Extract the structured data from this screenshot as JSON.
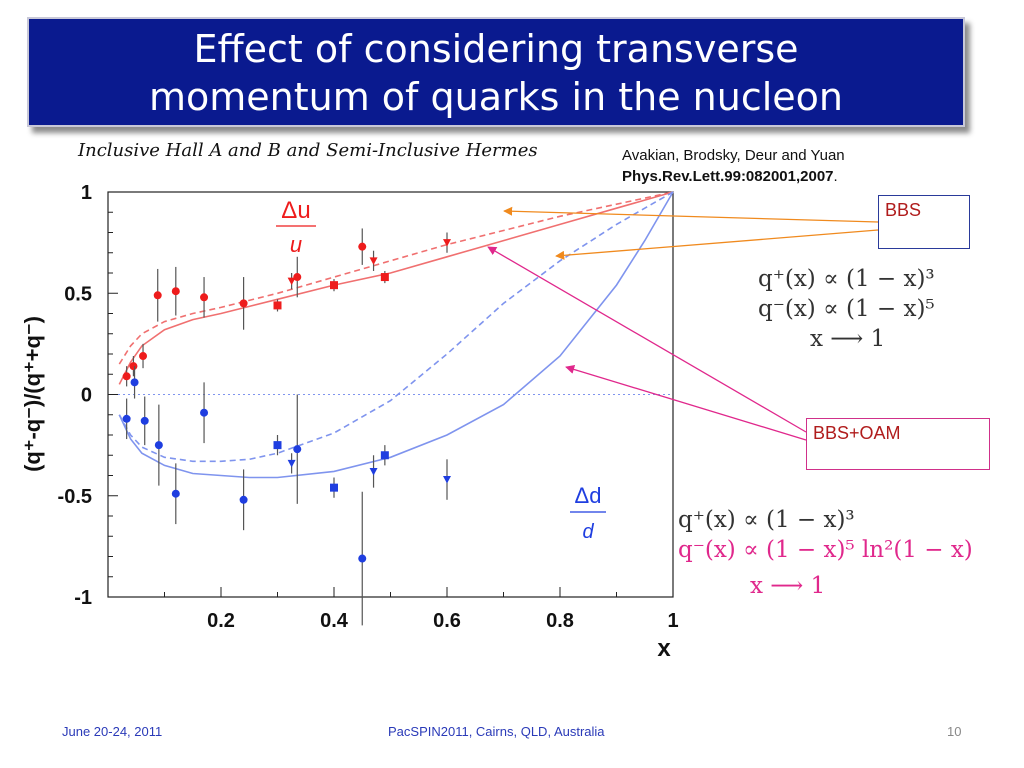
{
  "slide": {
    "title_line1": "Effect of considering transverse",
    "title_line2": "momentum of quarks in the nucleon",
    "subtitle": "Inclusive Hall A and B and Semi-Inclusive Hermes",
    "citation_authors": "Avakian, Brodsky, Deur and Yuan",
    "citation_ref": "Phys.Rev.Lett.99:082001,2007",
    "citation_period": ".",
    "bbs_label": "BBS",
    "bbs_oam_label": "BBS+OAM",
    "formula_bbs_1": "q⁺(x) ∝ (1 − x)³",
    "formula_bbs_2": "q⁻(x) ∝ (1 − x)⁵",
    "formula_bbs_3": "x ⟶ 1",
    "formula_oam_1": "q⁺(x) ∝ (1 − x)³",
    "formula_oam_2": "q⁻(x) ∝ (1 − x)⁵ ln²(1 − x)",
    "formula_oam_3": "x ⟶ 1",
    "footer_date": "June 20-24, 2011",
    "footer_conf": "PacSPIN2011, Cairns, QLD, Australia",
    "footer_page": "10"
  },
  "colors": {
    "title_bg": "#0a1a8f",
    "u_color": "#ee1c1c",
    "d_color": "#1f3ee0",
    "u_curve": "#f07070",
    "d_curve": "#7f94ee",
    "arrow_bbs": "#f08a1e",
    "arrow_oam": "#e0288c"
  },
  "chart_data": {
    "type": "scatter",
    "xlabel": "x",
    "ylabel": "(q⁺-q⁻)/(q⁺+q⁻)",
    "xlim": [
      0.0,
      1.0
    ],
    "ylim": [
      -1.0,
      1.0
    ],
    "x_ticks": [
      0.2,
      0.4,
      0.6,
      0.8,
      1.0
    ],
    "x_tick_labels": [
      "0.2",
      "0.4",
      "0.6",
      "0.8",
      "1"
    ],
    "y_ticks": [
      -1.0,
      -0.5,
      0.0,
      0.5,
      1.0
    ],
    "y_tick_labels": [
      "-1",
      "-0.5",
      "0",
      "0.5",
      "1"
    ],
    "series_labels": {
      "u": "Δu/u",
      "d": "Δd/d"
    },
    "points": [
      {
        "flavor": "u",
        "marker": "circle",
        "x": 0.033,
        "y": 0.09,
        "err": 0.05
      },
      {
        "flavor": "u",
        "marker": "circle",
        "x": 0.045,
        "y": 0.14,
        "err": 0.05
      },
      {
        "flavor": "u",
        "marker": "circle",
        "x": 0.062,
        "y": 0.19,
        "err": 0.06
      },
      {
        "flavor": "u",
        "marker": "circle",
        "x": 0.088,
        "y": 0.49,
        "err": 0.13
      },
      {
        "flavor": "u",
        "marker": "circle",
        "x": 0.12,
        "y": 0.51,
        "err": 0.12
      },
      {
        "flavor": "u",
        "marker": "circle",
        "x": 0.17,
        "y": 0.48,
        "err": 0.1
      },
      {
        "flavor": "u",
        "marker": "circle",
        "x": 0.24,
        "y": 0.45,
        "err": 0.13
      },
      {
        "flavor": "u",
        "marker": "circle",
        "x": 0.335,
        "y": 0.58,
        "err": 0.1
      },
      {
        "flavor": "u",
        "marker": "circle",
        "x": 0.45,
        "y": 0.73,
        "err": 0.09
      },
      {
        "flavor": "u",
        "marker": "square",
        "x": 0.3,
        "y": 0.44,
        "err": 0.03
      },
      {
        "flavor": "u",
        "marker": "square",
        "x": 0.4,
        "y": 0.54,
        "err": 0.03
      },
      {
        "flavor": "u",
        "marker": "square",
        "x": 0.49,
        "y": 0.58,
        "err": 0.03
      },
      {
        "flavor": "u",
        "marker": "triangle",
        "x": 0.325,
        "y": 0.56,
        "err": 0.04
      },
      {
        "flavor": "u",
        "marker": "triangle",
        "x": 0.47,
        "y": 0.66,
        "err": 0.05
      },
      {
        "flavor": "u",
        "marker": "triangle",
        "x": 0.6,
        "y": 0.75,
        "err": 0.05
      },
      {
        "flavor": "d",
        "marker": "circle",
        "x": 0.033,
        "y": -0.12,
        "err": 0.1
      },
      {
        "flavor": "d",
        "marker": "circle",
        "x": 0.047,
        "y": 0.06,
        "err": 0.08
      },
      {
        "flavor": "d",
        "marker": "circle",
        "x": 0.065,
        "y": -0.13,
        "err": 0.12
      },
      {
        "flavor": "d",
        "marker": "circle",
        "x": 0.09,
        "y": -0.25,
        "err": 0.2
      },
      {
        "flavor": "d",
        "marker": "circle",
        "x": 0.12,
        "y": -0.49,
        "err": 0.15
      },
      {
        "flavor": "d",
        "marker": "circle",
        "x": 0.17,
        "y": -0.09,
        "err": 0.15
      },
      {
        "flavor": "d",
        "marker": "circle",
        "x": 0.24,
        "y": -0.52,
        "err": 0.15
      },
      {
        "flavor": "d",
        "marker": "circle",
        "x": 0.335,
        "y": -0.27,
        "err": 0.27
      },
      {
        "flavor": "d",
        "marker": "circle",
        "x": 0.45,
        "y": -0.81,
        "err": 0.33
      },
      {
        "flavor": "d",
        "marker": "square",
        "x": 0.3,
        "y": -0.25,
        "err": 0.05
      },
      {
        "flavor": "d",
        "marker": "square",
        "x": 0.4,
        "y": -0.46,
        "err": 0.05
      },
      {
        "flavor": "d",
        "marker": "square",
        "x": 0.49,
        "y": -0.3,
        "err": 0.05
      },
      {
        "flavor": "d",
        "marker": "triangle",
        "x": 0.325,
        "y": -0.34,
        "err": 0.05
      },
      {
        "flavor": "d",
        "marker": "triangle",
        "x": 0.47,
        "y": -0.38,
        "err": 0.08
      },
      {
        "flavor": "d",
        "marker": "triangle",
        "x": 0.6,
        "y": -0.42,
        "err": 0.1
      }
    ],
    "curves": [
      {
        "id": "u_bbs",
        "style": "dashed",
        "flavor": "u",
        "x": [
          0.02,
          0.04,
          0.06,
          0.1,
          0.15,
          0.2,
          0.3,
          0.4,
          0.5,
          0.6,
          0.7,
          0.8,
          0.9,
          1.0
        ],
        "y": [
          0.15,
          0.24,
          0.3,
          0.36,
          0.4,
          0.43,
          0.5,
          0.58,
          0.66,
          0.74,
          0.81,
          0.88,
          0.94,
          1.0
        ]
      },
      {
        "id": "u_oam",
        "style": "solid",
        "flavor": "u",
        "x": [
          0.02,
          0.04,
          0.06,
          0.1,
          0.15,
          0.2,
          0.3,
          0.4,
          0.5,
          0.6,
          0.7,
          0.8,
          0.9,
          1.0
        ],
        "y": [
          0.05,
          0.16,
          0.24,
          0.32,
          0.37,
          0.4,
          0.47,
          0.54,
          0.6,
          0.68,
          0.76,
          0.84,
          0.92,
          1.0
        ]
      },
      {
        "id": "d_bbs",
        "style": "dashed",
        "flavor": "d",
        "x": [
          0.02,
          0.04,
          0.06,
          0.1,
          0.15,
          0.2,
          0.25,
          0.3,
          0.4,
          0.5,
          0.6,
          0.7,
          0.8,
          0.9,
          1.0
        ],
        "y": [
          -0.1,
          -0.2,
          -0.26,
          -0.31,
          -0.33,
          -0.33,
          -0.32,
          -0.29,
          -0.19,
          -0.03,
          0.2,
          0.45,
          0.66,
          0.84,
          1.0
        ]
      },
      {
        "id": "d_oam",
        "style": "solid",
        "flavor": "d",
        "x": [
          0.02,
          0.04,
          0.06,
          0.1,
          0.15,
          0.2,
          0.25,
          0.3,
          0.4,
          0.5,
          0.6,
          0.7,
          0.8,
          0.9,
          0.95,
          1.0
        ],
        "y": [
          -0.1,
          -0.22,
          -0.29,
          -0.35,
          -0.39,
          -0.4,
          -0.41,
          -0.41,
          -0.38,
          -0.31,
          -0.2,
          -0.05,
          0.19,
          0.54,
          0.76,
          1.0
        ]
      }
    ],
    "reference_line_y": 0.0
  }
}
